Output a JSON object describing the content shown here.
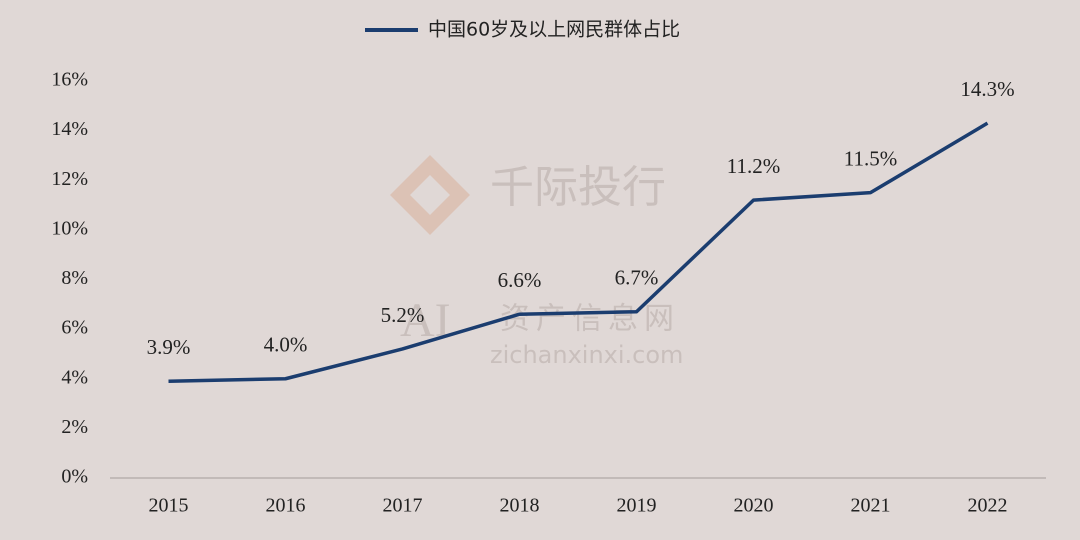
{
  "chart_data": {
    "type": "line",
    "categories": [
      "2015",
      "2016",
      "2017",
      "2018",
      "2019",
      "2020",
      "2021",
      "2022"
    ],
    "series": [
      {
        "name": "中国60岁及以上网民群体占比",
        "color": "#1b3d6f",
        "values": [
          3.9,
          4.0,
          5.2,
          6.6,
          6.7,
          11.2,
          11.5,
          14.3
        ],
        "value_labels": [
          "3.9%",
          "4.0%",
          "5.2%",
          "6.6%",
          "6.7%",
          "11.2%",
          "11.5%",
          "14.3%"
        ]
      }
    ],
    "ylim": [
      0,
      16
    ],
    "yticks": [
      {
        "value": 0,
        "label": "0%"
      },
      {
        "value": 2,
        "label": "2%"
      },
      {
        "value": 4,
        "label": "4%"
      },
      {
        "value": 6,
        "label": "6%"
      },
      {
        "value": 8,
        "label": "8%"
      },
      {
        "value": 10,
        "label": "10%"
      },
      {
        "value": 12,
        "label": "12%"
      },
      {
        "value": 14,
        "label": "14%"
      },
      {
        "value": 16,
        "label": "16%"
      }
    ],
    "grid": false,
    "legend": "top",
    "watermark": [
      "千际投行",
      "AI",
      "资产信息网",
      "zichanxinxi.com"
    ]
  }
}
